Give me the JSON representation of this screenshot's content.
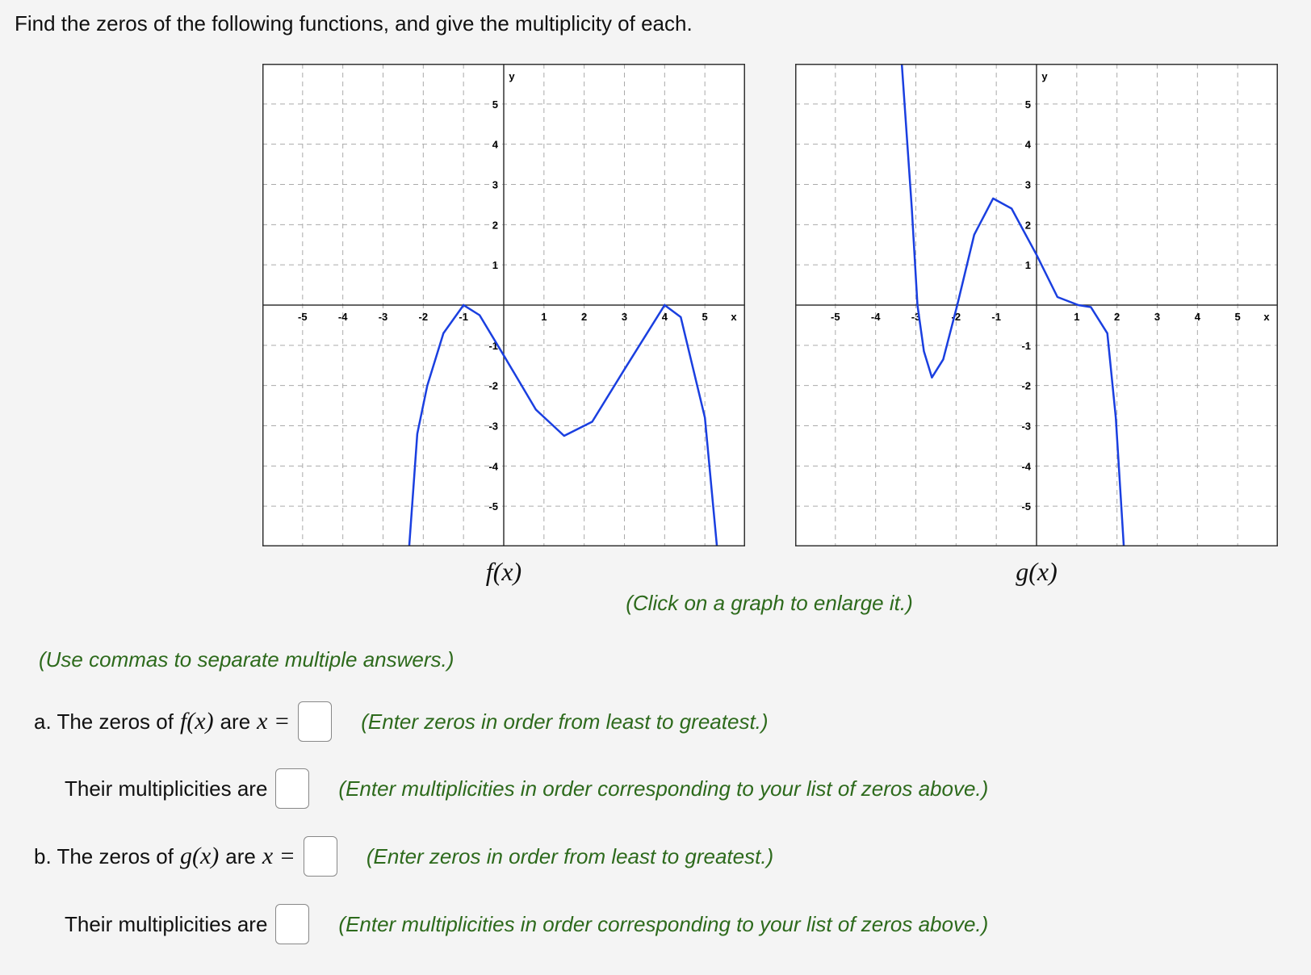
{
  "prompt": "Find the zeros of the following functions, and give the multiplicity of each.",
  "graphs": [
    {
      "caption": "f(x)",
      "x_label": "x",
      "y_label": "y",
      "xlim": [
        -6,
        6
      ],
      "ylim": [
        -6,
        6
      ],
      "xticks": [
        {
          "value": -5,
          "label": "-5"
        },
        {
          "value": -4,
          "label": "-4"
        },
        {
          "value": -3,
          "label": "-3"
        },
        {
          "value": -2,
          "label": "-2"
        },
        {
          "value": -1,
          "label": "-1"
        },
        1,
        2,
        3,
        4,
        5
      ],
      "yticks": [
        {
          "value": -5,
          "label": "-5"
        },
        {
          "value": -4,
          "label": "-4"
        },
        {
          "value": -3,
          "label": "-3"
        },
        {
          "value": -2,
          "label": "-2"
        },
        {
          "value": -1,
          "label": "-1"
        },
        1,
        2,
        3,
        4,
        5
      ],
      "curve": {
        "color": "#1a3fe0",
        "x": [
          -2.35,
          -2.15,
          -1.9,
          -1.5,
          -1,
          -0.6,
          0,
          0.8,
          1.5,
          2.2,
          3,
          4,
          4.4,
          5,
          5.3
        ],
        "y": [
          -6,
          -3.2,
          -2,
          -0.7,
          0,
          -0.25,
          -1.25,
          -2.6,
          -3.25,
          -2.9,
          -1.6,
          0,
          -0.3,
          -2.8,
          -6
        ]
      }
    },
    {
      "caption": "g(x)",
      "x_label": "x",
      "y_label": "y",
      "xlim": [
        -6,
        6
      ],
      "ylim": [
        -6,
        6
      ],
      "xticks": [
        {
          "value": -5,
          "label": "-5"
        },
        {
          "value": -4,
          "label": "-4"
        },
        {
          "value": -3,
          "label": "-3"
        },
        {
          "value": -2,
          "label": "-2"
        },
        {
          "value": -1,
          "label": "-1"
        },
        1,
        2,
        3,
        4,
        5
      ],
      "yticks": [
        {
          "value": -5,
          "label": "-5"
        },
        {
          "value": -4,
          "label": "-4"
        },
        {
          "value": -3,
          "label": "-3"
        },
        {
          "value": -2,
          "label": "-2"
        },
        {
          "value": -1,
          "label": "-1"
        },
        1,
        2,
        3,
        4,
        5
      ],
      "curve": {
        "color": "#1a3fe0",
        "x": [
          -3.35,
          -3.1,
          -2.96,
          -2.8,
          -2.6,
          -2.32,
          -1.97,
          -1.55,
          -1.08,
          -0.62,
          0,
          0.52,
          1.04,
          1.35,
          1.76,
          1.97,
          2.17
        ],
        "y": [
          6,
          2.4,
          0,
          -1.15,
          -1.8,
          -1.35,
          0,
          1.75,
          2.65,
          2.4,
          1.25,
          0.2,
          0,
          -0.05,
          -0.7,
          -2.8,
          -6
        ]
      }
    }
  ],
  "enlarge_note": "(Click on a graph to enlarge it.)",
  "instruction": "(Use commas to separate multiple answers.)",
  "rows": [
    {
      "prefix": "a. The zeros of",
      "func": "f(x)",
      "mid": "are",
      "var": "x =",
      "hint": "(Enter zeros in order from least to greatest.)"
    },
    {
      "label": "Their multiplicities are",
      "hint": "(Enter multiplicities in order corresponding to your list of zeros above.)"
    },
    {
      "prefix": "b. The zeros of",
      "func": "g(x)",
      "mid": "are",
      "var": "x =",
      "hint": "(Enter zeros in order from least to greatest.)"
    },
    {
      "label": "Their multiplicities are",
      "hint": "(Enter multiplicities in order corresponding to your list of zeros above.)"
    }
  ]
}
